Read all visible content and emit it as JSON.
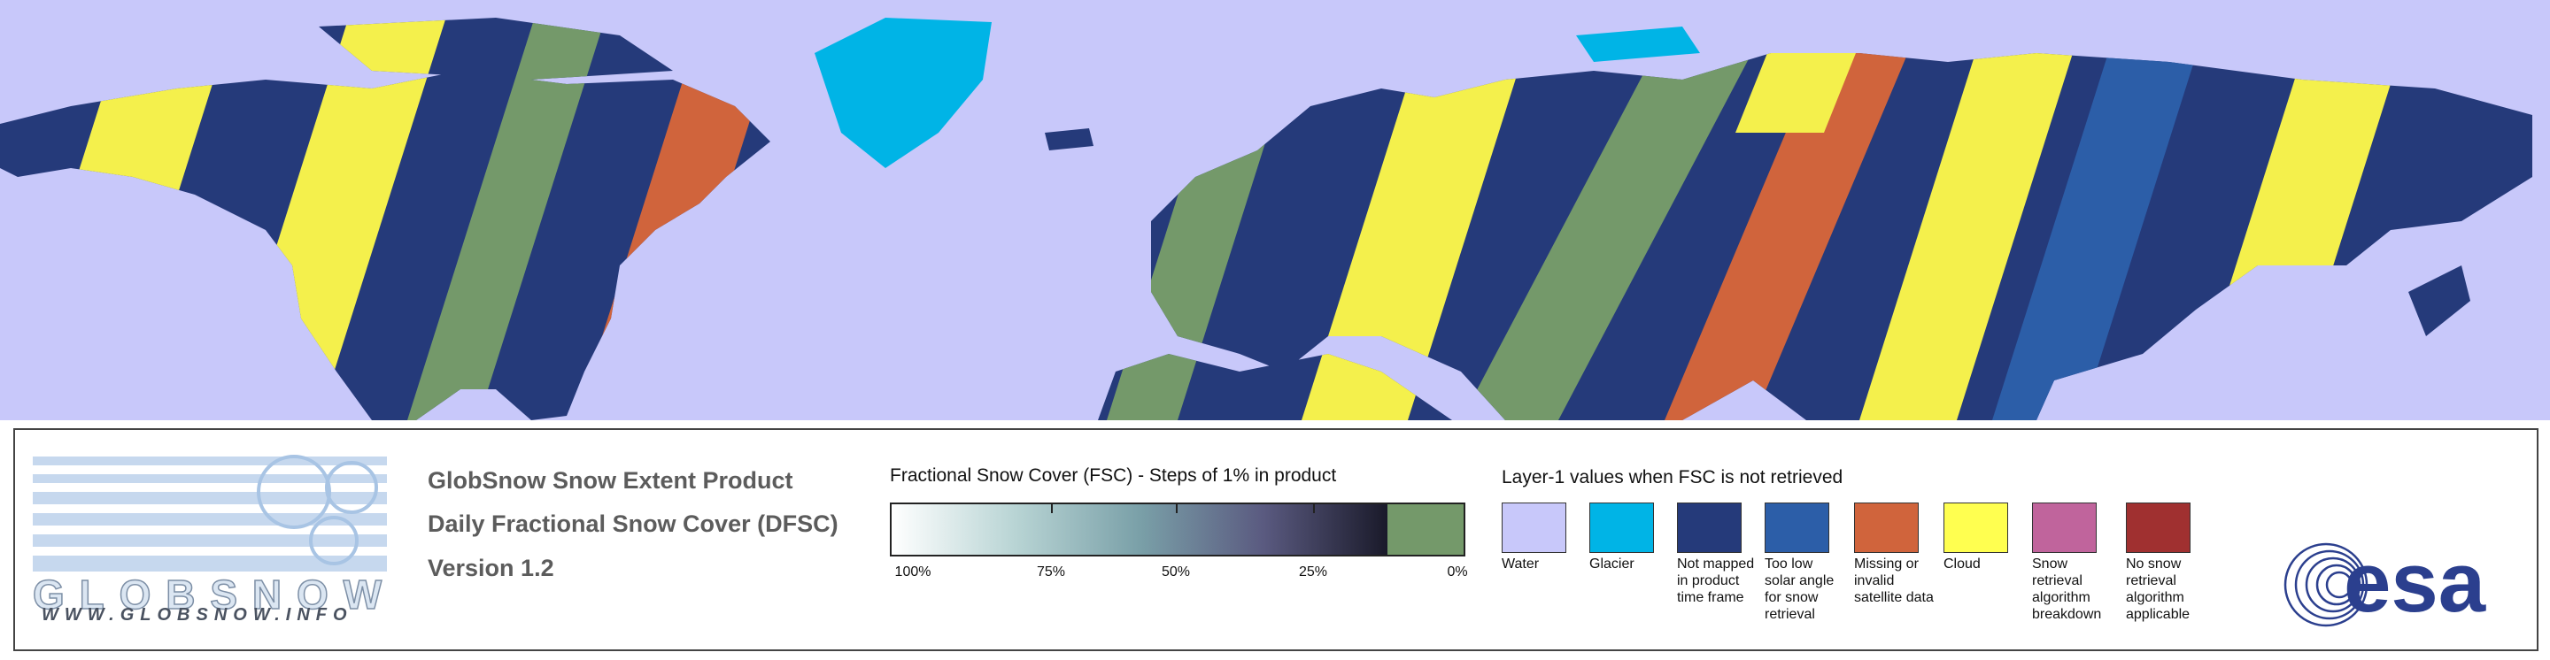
{
  "logo": {
    "name": "GLOBSNOW",
    "url": "WWW.GLOBSNOW.INFO"
  },
  "product": {
    "lines": [
      "GlobSnow Snow Extent Product",
      "Daily Fractional Snow Cover (DFSC)",
      "Version 1.2"
    ]
  },
  "colorbar": {
    "title": "Fractional Snow Cover (FSC) - Steps of 1% in product",
    "ticks": [
      "100%",
      "75%",
      "50%",
      "25%",
      "0%"
    ]
  },
  "layer1": {
    "title": "Layer-1 values when FSC is not retrieved",
    "items": [
      {
        "label": "Water",
        "color": "#c8c8fa"
      },
      {
        "label": "Glacier",
        "color": "#00b4e6"
      },
      {
        "label": "Not mapped in product time frame",
        "color": "#253a7a"
      },
      {
        "label": "Too low solar angle for snow retrieval",
        "color": "#2c5ea8"
      },
      {
        "label": "Missing or invalid satellite data",
        "color": "#d0643c"
      },
      {
        "label": "Cloud",
        "color": "#ffff50"
      },
      {
        "label": "Snow retrieval algorithm breakdown",
        "color": "#c0649c"
      },
      {
        "label": "No snow retrieval algorithm applicable",
        "color": "#a03030"
      }
    ]
  },
  "agency": "esa"
}
